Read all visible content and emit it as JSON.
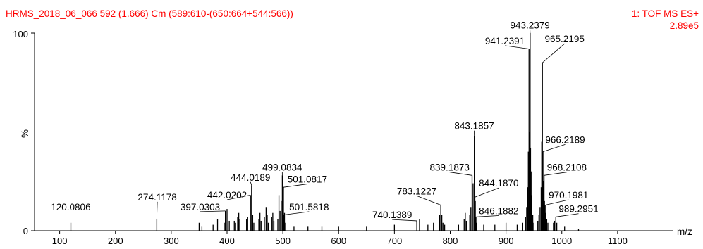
{
  "chart_data": {
    "type": "bar",
    "title": "HRMS_2018_06_066 592 (1.666) Cm (589:610-(650:664+544:566))",
    "scan_mode": "1: TOF MS ES+",
    "base_intensity": "2.89e5",
    "xlabel": "m/z",
    "ylabel": "%",
    "xlim": [
      55,
      1200
    ],
    "ylim": [
      0,
      100
    ],
    "x_ticks": [
      100,
      200,
      300,
      400,
      500,
      600,
      700,
      800,
      900,
      1000,
      1100
    ],
    "y_ticks": [
      "0",
      "100"
    ],
    "peaks": [
      {
        "mz": 120.0806,
        "intensity": 4,
        "label": "120.0806"
      },
      {
        "mz": 274.1178,
        "intensity": 6,
        "label": "274.1178"
      },
      {
        "mz": 397.0303,
        "intensity": 10,
        "label": "397.0303"
      },
      {
        "mz": 442.0202,
        "intensity": 18,
        "label": "442.0202"
      },
      {
        "mz": 444.0189,
        "intensity": 23,
        "label": "444.0189"
      },
      {
        "mz": 499.0834,
        "intensity": 28,
        "label": "499.0834"
      },
      {
        "mz": 501.0817,
        "intensity": 22,
        "label": "501.0817"
      },
      {
        "mz": 501.5818,
        "intensity": 8,
        "label": "501.5818"
      },
      {
        "mz": 740.1389,
        "intensity": 5,
        "label": "740.1389"
      },
      {
        "mz": 783.1227,
        "intensity": 13,
        "label": "783.1227"
      },
      {
        "mz": 839.1873,
        "intensity": 28,
        "label": "839.1873"
      },
      {
        "mz": 843.1857,
        "intensity": 48,
        "label": "843.1857"
      },
      {
        "mz": 844.187,
        "intensity": 17,
        "label": "844.1870"
      },
      {
        "mz": 846.1882,
        "intensity": 7,
        "label": "846.1882"
      },
      {
        "mz": 941.2391,
        "intensity": 92,
        "label": "941.2391"
      },
      {
        "mz": 943.2379,
        "intensity": 100,
        "label": "943.2379"
      },
      {
        "mz": 965.2195,
        "intensity": 85,
        "label": "965.2195"
      },
      {
        "mz": 966.2189,
        "intensity": 40,
        "label": "966.2189"
      },
      {
        "mz": 968.2108,
        "intensity": 28,
        "label": "968.2108"
      },
      {
        "mz": 970.1981,
        "intensity": 13,
        "label": "970.1981"
      },
      {
        "mz": 989.2951,
        "intensity": 7,
        "label": "989.2951"
      },
      {
        "mz": 350,
        "intensity": 4
      },
      {
        "mz": 355,
        "intensity": 2
      },
      {
        "mz": 375,
        "intensity": 3
      },
      {
        "mz": 383,
        "intensity": 6
      },
      {
        "mz": 395,
        "intensity": 4
      },
      {
        "mz": 400,
        "intensity": 11
      },
      {
        "mz": 404,
        "intensity": 5
      },
      {
        "mz": 413,
        "intensity": 5
      },
      {
        "mz": 415,
        "intensity": 4
      },
      {
        "mz": 419,
        "intensity": 7
      },
      {
        "mz": 421,
        "intensity": 9
      },
      {
        "mz": 423,
        "intensity": 6
      },
      {
        "mz": 435,
        "intensity": 6
      },
      {
        "mz": 437,
        "intensity": 7
      },
      {
        "mz": 446,
        "intensity": 8
      },
      {
        "mz": 448,
        "intensity": 4
      },
      {
        "mz": 457,
        "intensity": 6
      },
      {
        "mz": 459,
        "intensity": 9
      },
      {
        "mz": 461,
        "intensity": 5
      },
      {
        "mz": 467,
        "intensity": 7
      },
      {
        "mz": 470,
        "intensity": 12
      },
      {
        "mz": 472,
        "intensity": 8
      },
      {
        "mz": 474,
        "intensity": 4
      },
      {
        "mz": 480,
        "intensity": 7
      },
      {
        "mz": 482,
        "intensity": 9
      },
      {
        "mz": 484,
        "intensity": 5
      },
      {
        "mz": 491,
        "intensity": 6
      },
      {
        "mz": 493,
        "intensity": 18
      },
      {
        "mz": 495,
        "intensity": 10
      },
      {
        "mz": 497,
        "intensity": 15
      },
      {
        "mz": 503,
        "intensity": 9
      },
      {
        "mz": 505,
        "intensity": 4
      },
      {
        "mz": 520,
        "intensity": 2
      },
      {
        "mz": 545,
        "intensity": 2
      },
      {
        "mz": 570,
        "intensity": 2
      },
      {
        "mz": 600,
        "intensity": 2
      },
      {
        "mz": 650,
        "intensity": 2
      },
      {
        "mz": 700,
        "intensity": 3
      },
      {
        "mz": 745,
        "intensity": 6
      },
      {
        "mz": 760,
        "intensity": 3
      },
      {
        "mz": 770,
        "intensity": 4
      },
      {
        "mz": 781,
        "intensity": 8
      },
      {
        "mz": 785,
        "intensity": 8
      },
      {
        "mz": 787,
        "intensity": 4
      },
      {
        "mz": 790,
        "intensity": 3
      },
      {
        "mz": 815,
        "intensity": 3
      },
      {
        "mz": 825,
        "intensity": 6
      },
      {
        "mz": 827,
        "intensity": 9
      },
      {
        "mz": 829,
        "intensity": 5
      },
      {
        "mz": 835,
        "intensity": 8
      },
      {
        "mz": 837,
        "intensity": 12
      },
      {
        "mz": 841,
        "intensity": 24
      },
      {
        "mz": 845,
        "intensity": 15
      },
      {
        "mz": 847,
        "intensity": 4
      },
      {
        "mz": 860,
        "intensity": 3
      },
      {
        "mz": 880,
        "intensity": 3
      },
      {
        "mz": 900,
        "intensity": 4
      },
      {
        "mz": 920,
        "intensity": 3
      },
      {
        "mz": 930,
        "intensity": 4
      },
      {
        "mz": 935,
        "intensity": 7
      },
      {
        "mz": 937,
        "intensity": 12
      },
      {
        "mz": 939,
        "intensity": 22
      },
      {
        "mz": 940,
        "intensity": 40
      },
      {
        "mz": 942,
        "intensity": 50
      },
      {
        "mz": 944,
        "intensity": 42
      },
      {
        "mz": 945,
        "intensity": 30
      },
      {
        "mz": 946,
        "intensity": 18
      },
      {
        "mz": 948,
        "intensity": 8
      },
      {
        "mz": 950,
        "intensity": 4
      },
      {
        "mz": 957,
        "intensity": 5
      },
      {
        "mz": 959,
        "intensity": 8
      },
      {
        "mz": 961,
        "intensity": 12
      },
      {
        "mz": 963,
        "intensity": 22
      },
      {
        "mz": 964,
        "intensity": 45
      },
      {
        "mz": 967,
        "intensity": 25
      },
      {
        "mz": 969,
        "intensity": 15
      },
      {
        "mz": 971,
        "intensity": 9
      },
      {
        "mz": 973,
        "intensity": 6
      },
      {
        "mz": 975,
        "intensity": 4
      },
      {
        "mz": 985,
        "intensity": 4
      },
      {
        "mz": 987,
        "intensity": 5
      },
      {
        "mz": 991,
        "intensity": 4
      },
      {
        "mz": 1005,
        "intensity": 2
      },
      {
        "mz": 1030,
        "intensity": 1
      }
    ],
    "labels": [
      {
        "text": "120.0806",
        "mz": 120.0806,
        "intensity": 4,
        "tx": 120,
        "ty": 10
      },
      {
        "text": "274.1178",
        "mz": 274.1178,
        "intensity": 6,
        "tx": 275,
        "ty": 15
      },
      {
        "text": "397.0303",
        "mz": 397.0303,
        "intensity": 10,
        "tx": 352,
        "ty": 10
      },
      {
        "text": "442.0202",
        "mz": 442.0202,
        "intensity": 18,
        "tx": 400,
        "ty": 16
      },
      {
        "text": "444.0189",
        "mz": 444.0189,
        "intensity": 23,
        "tx": 442,
        "ty": 25
      },
      {
        "text": "499.0834",
        "mz": 499.0834,
        "intensity": 28,
        "tx": 499,
        "ty": 30
      },
      {
        "text": "501.0817",
        "mz": 501.0817,
        "intensity": 22,
        "tx": 544,
        "ty": 24
      },
      {
        "text": "501.5818",
        "mz": 501.5818,
        "intensity": 8,
        "tx": 547,
        "ty": 10
      },
      {
        "text": "740.1389",
        "mz": 740.1389,
        "intensity": 5,
        "tx": 696,
        "ty": 6
      },
      {
        "text": "783.1227",
        "mz": 783.1227,
        "intensity": 13,
        "tx": 740,
        "ty": 18
      },
      {
        "text": "839.1873",
        "mz": 839.1873,
        "intensity": 28,
        "tx": 799,
        "ty": 30
      },
      {
        "text": "843.1857",
        "mz": 843.1857,
        "intensity": 48,
        "tx": 843,
        "ty": 51
      },
      {
        "text": "844.1870",
        "mz": 844.187,
        "intensity": 17,
        "tx": 887,
        "ty": 22
      },
      {
        "text": "846.1882",
        "mz": 846.1882,
        "intensity": 7,
        "tx": 887,
        "ty": 8
      },
      {
        "text": "941.2391",
        "mz": 941.2391,
        "intensity": 92,
        "tx": 898,
        "ty": 94
      },
      {
        "text": "943.2379",
        "mz": 943.2379,
        "intensity": 100,
        "tx": 943,
        "ty": 102
      },
      {
        "text": "965.2195",
        "mz": 965.2195,
        "intensity": 85,
        "tx": 1005,
        "ty": 95
      },
      {
        "text": "966.2189",
        "mz": 966.2189,
        "intensity": 40,
        "tx": 1006,
        "ty": 44
      },
      {
        "text": "968.2108",
        "mz": 968.2108,
        "intensity": 28,
        "tx": 1009,
        "ty": 30
      },
      {
        "text": "970.1981",
        "mz": 970.1981,
        "intensity": 13,
        "tx": 1012,
        "ty": 16
      },
      {
        "text": "989.2951",
        "mz": 989.2951,
        "intensity": 7,
        "tx": 1030,
        "ty": 9
      }
    ]
  }
}
